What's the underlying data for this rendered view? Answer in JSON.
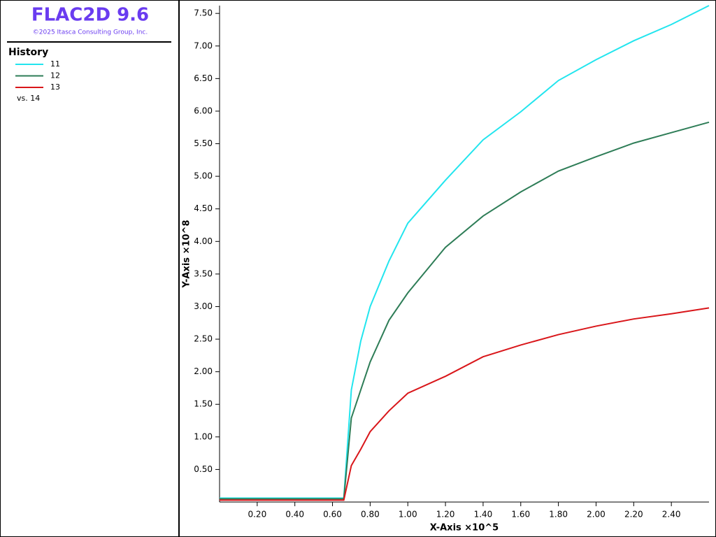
{
  "header": {
    "title": "FLAC2D 9.6",
    "copyright": "©2025 Itasca Consulting Group, Inc."
  },
  "legend": {
    "title": "History",
    "x_history": "vs. 14"
  },
  "chart_data": {
    "type": "line",
    "x_label": "X-Axis ×10^5",
    "y_label": "Y-Axis ×10^8",
    "x": [
      0,
      0.66,
      0.7,
      0.75,
      0.8,
      0.9,
      1.0,
      1.2,
      1.4,
      1.6,
      1.8,
      2.0,
      2.2,
      2.4,
      2.6
    ],
    "series": [
      {
        "name": "11",
        "color": "#22e5ee",
        "values": [
          0.06,
          0.06,
          1.72,
          2.47,
          3.0,
          3.7,
          4.28,
          4.94,
          5.56,
          5.99,
          6.47,
          6.79,
          7.08,
          7.33,
          7.62
        ]
      },
      {
        "name": "12",
        "color": "#2e7d57",
        "values": [
          0.05,
          0.05,
          1.29,
          1.72,
          2.15,
          2.79,
          3.21,
          3.91,
          4.39,
          4.76,
          5.08,
          5.3,
          5.51,
          5.67,
          5.83
        ]
      },
      {
        "name": "13",
        "color": "#d9161a",
        "values": [
          0.03,
          0.03,
          0.56,
          0.81,
          1.08,
          1.4,
          1.67,
          1.93,
          2.23,
          2.41,
          2.57,
          2.7,
          2.81,
          2.89,
          2.98
        ]
      }
    ],
    "xlim": [
      0,
      2.6
    ],
    "ylim": [
      0,
      7.62
    ],
    "xticks": [
      {
        "value": 0.2,
        "label": "0.20"
      },
      {
        "value": 0.4,
        "label": "0.40"
      },
      {
        "value": 0.6,
        "label": "0.60"
      },
      {
        "value": 0.8,
        "label": "0.80"
      },
      {
        "value": 1.0,
        "label": "1.00"
      },
      {
        "value": 1.2,
        "label": "1.20"
      },
      {
        "value": 1.4,
        "label": "1.40"
      },
      {
        "value": 1.6,
        "label": "1.60"
      },
      {
        "value": 1.8,
        "label": "1.80"
      },
      {
        "value": 2.0,
        "label": "2.00"
      },
      {
        "value": 2.2,
        "label": "2.20"
      },
      {
        "value": 2.4,
        "label": "2.40"
      }
    ],
    "yticks": [
      {
        "value": 0.5,
        "label": "0.50"
      },
      {
        "value": 1.0,
        "label": "1.00"
      },
      {
        "value": 1.5,
        "label": "1.50"
      },
      {
        "value": 2.0,
        "label": "2.00"
      },
      {
        "value": 2.5,
        "label": "2.50"
      },
      {
        "value": 3.0,
        "label": "3.00"
      },
      {
        "value": 3.5,
        "label": "3.50"
      },
      {
        "value": 4.0,
        "label": "4.00"
      },
      {
        "value": 4.5,
        "label": "4.50"
      },
      {
        "value": 5.0,
        "label": "5.00"
      },
      {
        "value": 5.5,
        "label": "5.50"
      },
      {
        "value": 6.0,
        "label": "6.00"
      },
      {
        "value": 6.5,
        "label": "6.50"
      },
      {
        "value": 7.0,
        "label": "7.00"
      },
      {
        "value": 7.5,
        "label": "7.50"
      }
    ]
  }
}
